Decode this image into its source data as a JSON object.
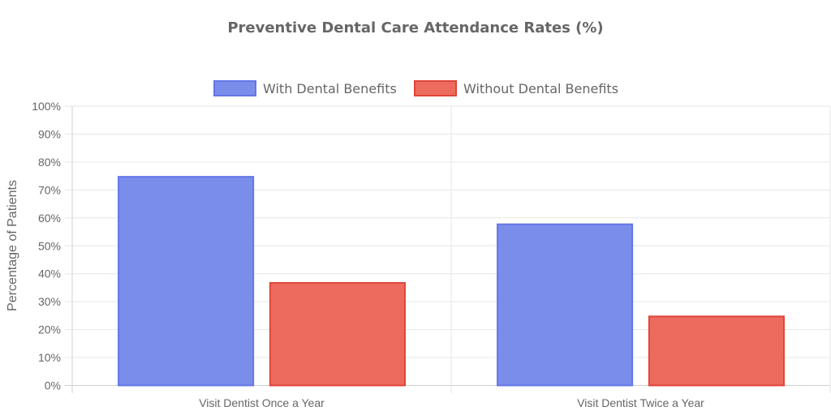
{
  "chart_data": {
    "type": "bar",
    "title": "Preventive Dental Care Attendance Rates (%)",
    "categories": [
      "Visit Dentist Once a Year",
      "Visit Dentist Twice a Year"
    ],
    "series": [
      {
        "name": "With Dental Benefits",
        "values": [
          75,
          58
        ],
        "fill": "#7b8deb",
        "border": "#6377e6"
      },
      {
        "name": "Without Dental Benefits",
        "values": [
          37,
          25
        ],
        "fill": "#ec6b5e",
        "border": "#e0453a"
      }
    ],
    "xlabel": "",
    "ylabel": "Percentage of Patients",
    "ylim": [
      0,
      100
    ],
    "yticks": [
      "0%",
      "10%",
      "20%",
      "30%",
      "40%",
      "50%",
      "60%",
      "70%",
      "80%",
      "90%",
      "100%"
    ],
    "legend_position": "top",
    "grid": true
  }
}
